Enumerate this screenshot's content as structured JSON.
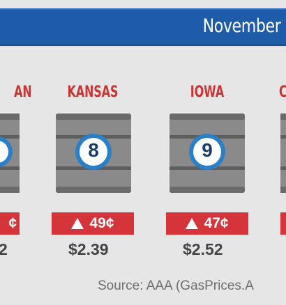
{
  "header": {
    "title": "November"
  },
  "states": [
    {
      "name": "AN",
      "rank": "",
      "change": "¢",
      "price": "2"
    },
    {
      "name": "KANSAS",
      "rank": "8",
      "change": "49¢",
      "price": "$2.39"
    },
    {
      "name": "IOWA",
      "rank": "9",
      "change": "47¢",
      "price": "$2.52"
    },
    {
      "name": "C",
      "rank": "",
      "change": "",
      "price": ""
    }
  ],
  "footer": {
    "source": "Source: AAA (GasPrices.A"
  },
  "colors": {
    "header_blue": "#1e5ba8",
    "state_red": "#cc3333",
    "badge_red": "#d6343b",
    "barrel_gray": "#8a8a8a",
    "ring_blue": "#2a7fc9",
    "rank_navy": "#1c3b6b",
    "background": "#e6e6e7"
  },
  "icons": [
    "barrel-icon",
    "up-triangle-icon"
  ]
}
